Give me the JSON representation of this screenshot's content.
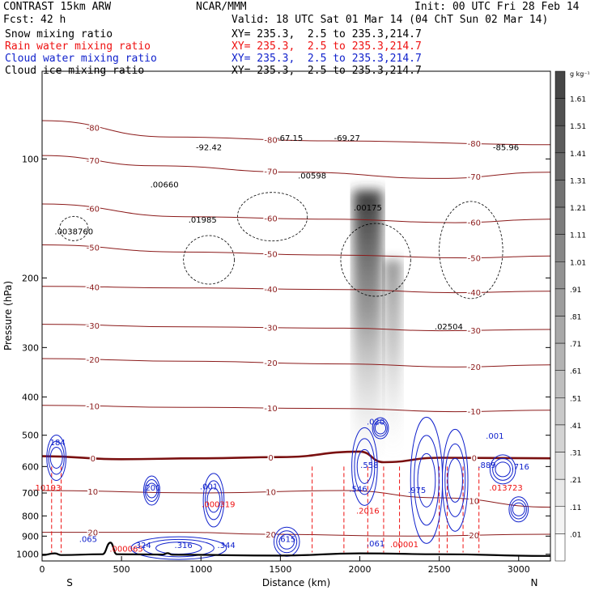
{
  "header": {
    "model": "CONTRAST 15km ARW",
    "org": "NCAR/MMM",
    "init": "Init: 00 UTC Fri 28 Feb 14",
    "fcst_label": "Fcst:",
    "fcst_value": "42 h",
    "valid": "Valid: 18 UTC Sat 01 Mar 14 (04 ChT Sun 02 Mar 14)",
    "fields": [
      {
        "name": "Snow mixing ratio",
        "xy": "XY= 235.3,  2.5 to 235.3,214.7",
        "color": "#000000"
      },
      {
        "name": "Rain water mixing ratio",
        "xy": "XY= 235.3,  2.5 to 235.3,214.7",
        "color": "#ee1111"
      },
      {
        "name": "Cloud water mixing ratio",
        "xy": "XY= 235.3,  2.5 to 235.3,214.7",
        "color": "#1122cc"
      },
      {
        "name": "Cloud ice mixing ratio",
        "xy": "XY= 235.3,  2.5 to 235.3,214.7",
        "color": "#000000"
      }
    ]
  },
  "axes": {
    "ylabel": "Pressure (hPa)",
    "xlabel": "Distance (km)",
    "x_left_label": "S",
    "x_right_label": "N"
  },
  "colorbar": {
    "unit": "g kg⁻¹",
    "labels": [
      "1.61",
      "1.51",
      "1.41",
      "1.31",
      "1.21",
      "1.11",
      "1.01",
      ".91",
      ".81",
      ".71",
      ".61",
      ".51",
      ".41",
      ".31",
      ".21",
      ".11",
      ".01"
    ]
  },
  "chart_data": {
    "type": "cross-section contour",
    "x_range": [
      0,
      3200
    ],
    "x_ticks": [
      0,
      500,
      1000,
      1500,
      2000,
      2500,
      3000
    ],
    "y_range_hPa": [
      1040,
      60
    ],
    "y_scale": "log",
    "y_ticks": [
      100,
      200,
      300,
      400,
      500,
      600,
      700,
      800,
      900,
      1000
    ],
    "temperature_isotherms_C": [
      {
        "value": -80,
        "p": [
          {
            "x": 0,
            "p": 80
          },
          {
            "x": 800,
            "p": 88
          },
          {
            "x": 1800,
            "p": 90
          },
          {
            "x": 3200,
            "p": 92
          }
        ]
      },
      {
        "value": -70,
        "p": [
          {
            "x": 0,
            "p": 98
          },
          {
            "x": 700,
            "p": 104
          },
          {
            "x": 1600,
            "p": 108
          },
          {
            "x": 2500,
            "p": 112
          },
          {
            "x": 3200,
            "p": 108
          }
        ]
      },
      {
        "value": -60,
        "p": [
          {
            "x": 0,
            "p": 130
          },
          {
            "x": 900,
            "p": 140
          },
          {
            "x": 1800,
            "p": 142
          },
          {
            "x": 2600,
            "p": 145
          },
          {
            "x": 3200,
            "p": 142
          }
        ]
      },
      {
        "value": -50,
        "p": [
          {
            "x": 0,
            "p": 165
          },
          {
            "x": 900,
            "p": 172
          },
          {
            "x": 1800,
            "p": 175
          },
          {
            "x": 2700,
            "p": 178
          },
          {
            "x": 3200,
            "p": 176
          }
        ]
      },
      {
        "value": -40,
        "p": [
          {
            "x": 0,
            "p": 210
          },
          {
            "x": 900,
            "p": 212
          },
          {
            "x": 1900,
            "p": 214
          },
          {
            "x": 2600,
            "p": 218
          },
          {
            "x": 3200,
            "p": 216
          }
        ]
      },
      {
        "value": -30,
        "p": [
          {
            "x": 0,
            "p": 262
          },
          {
            "x": 900,
            "p": 266
          },
          {
            "x": 1900,
            "p": 268
          },
          {
            "x": 2500,
            "p": 272
          },
          {
            "x": 3200,
            "p": 270
          }
        ]
      },
      {
        "value": -20,
        "p": [
          {
            "x": 0,
            "p": 320
          },
          {
            "x": 900,
            "p": 325
          },
          {
            "x": 1900,
            "p": 330
          },
          {
            "x": 2600,
            "p": 336
          },
          {
            "x": 3200,
            "p": 332
          }
        ]
      },
      {
        "value": -10,
        "p": [
          {
            "x": 0,
            "p": 420
          },
          {
            "x": 900,
            "p": 425
          },
          {
            "x": 1900,
            "p": 428
          },
          {
            "x": 2600,
            "p": 436
          },
          {
            "x": 3200,
            "p": 432
          }
        ]
      },
      {
        "value": 0,
        "p": [
          {
            "x": 0,
            "p": 565
          },
          {
            "x": 500,
            "p": 575
          },
          {
            "x": 1000,
            "p": 572
          },
          {
            "x": 1500,
            "p": 568
          },
          {
            "x": 2000,
            "p": 550
          },
          {
            "x": 2150,
            "p": 585
          },
          {
            "x": 2500,
            "p": 570
          },
          {
            "x": 3200,
            "p": 572
          }
        ]
      },
      {
        "value": 10,
        "p": [
          {
            "x": 0,
            "p": 690
          },
          {
            "x": 1000,
            "p": 700
          },
          {
            "x": 1900,
            "p": 690
          },
          {
            "x": 2500,
            "p": 720
          },
          {
            "x": 3200,
            "p": 760
          }
        ]
      },
      {
        "value": 20,
        "p": [
          {
            "x": 0,
            "p": 880
          },
          {
            "x": 900,
            "p": 880
          },
          {
            "x": 1400,
            "p": 890
          },
          {
            "x": 2300,
            "p": 900
          },
          {
            "x": 3200,
            "p": 890
          }
        ]
      }
    ],
    "max_labels": [
      {
        "x": 200,
        "p": 155,
        "text": ".0038760"
      },
      {
        "x": 770,
        "p": 118,
        "text": ".00660"
      },
      {
        "x": 1010,
        "p": 145,
        "text": ".01985"
      },
      {
        "x": 1700,
        "p": 112,
        "text": ".00598"
      },
      {
        "x": 2050,
        "p": 135,
        "text": ".00175"
      },
      {
        "x": 2560,
        "p": 270,
        "text": ".02504"
      },
      {
        "x": 1050,
        "p": 95,
        "text": "-92.42"
      },
      {
        "x": 1560,
        "p": 90,
        "text": "-67.15"
      },
      {
        "x": 1920,
        "p": 90,
        "text": "-69.27"
      },
      {
        "x": 2920,
        "p": 95,
        "text": "-85.96"
      }
    ],
    "rain_labels": [
      {
        "x": 30,
        "p": 690,
        "text": ".10193"
      },
      {
        "x": 1110,
        "p": 760,
        "text": ".000319"
      },
      {
        "x": 2050,
        "p": 790,
        "text": ".2016"
      },
      {
        "x": 2920,
        "p": 690,
        "text": ".013723"
      },
      {
        "x": 530,
        "p": 985,
        "text": ".000065"
      },
      {
        "x": 2280,
        "p": 960,
        "text": ".00001"
      }
    ],
    "cloud_labels": [
      {
        "x": 90,
        "p": 530,
        "text": ".184"
      },
      {
        "x": 690,
        "p": 690,
        "text": ".200"
      },
      {
        "x": 1050,
        "p": 685,
        "text": ".001"
      },
      {
        "x": 1990,
        "p": 695,
        "text": ".546"
      },
      {
        "x": 2100,
        "p": 470,
        "text": ".020"
      },
      {
        "x": 2060,
        "p": 605,
        "text": ".558"
      },
      {
        "x": 2360,
        "p": 700,
        "text": ".975"
      },
      {
        "x": 2800,
        "p": 605,
        "text": ".889"
      },
      {
        "x": 3010,
        "p": 610,
        "text": ".716"
      },
      {
        "x": 2850,
        "p": 510,
        "text": ".001"
      },
      {
        "x": 630,
        "p": 965,
        "text": ".324"
      },
      {
        "x": 890,
        "p": 965,
        "text": ".316"
      },
      {
        "x": 1160,
        "p": 965,
        "text": ".344"
      },
      {
        "x": 1540,
        "p": 930,
        "text": ".615"
      },
      {
        "x": 2100,
        "p": 955,
        "text": ".061"
      },
      {
        "x": 290,
        "p": 930,
        "text": ".065"
      }
    ],
    "snow_column": {
      "x_center": 2050,
      "p_top": 120,
      "p_bottom": 590
    },
    "terrain": [
      {
        "x": 0,
        "p": 1005
      },
      {
        "x": 80,
        "p": 995
      },
      {
        "x": 120,
        "p": 1005
      },
      {
        "x": 380,
        "p": 1000
      },
      {
        "x": 430,
        "p": 935
      },
      {
        "x": 470,
        "p": 1000
      },
      {
        "x": 760,
        "p": 1002
      },
      {
        "x": 790,
        "p": 994
      },
      {
        "x": 820,
        "p": 1003
      },
      {
        "x": 1500,
        "p": 1008
      },
      {
        "x": 2000,
        "p": 995
      },
      {
        "x": 2500,
        "p": 1000
      },
      {
        "x": 3200,
        "p": 1010
      }
    ]
  }
}
